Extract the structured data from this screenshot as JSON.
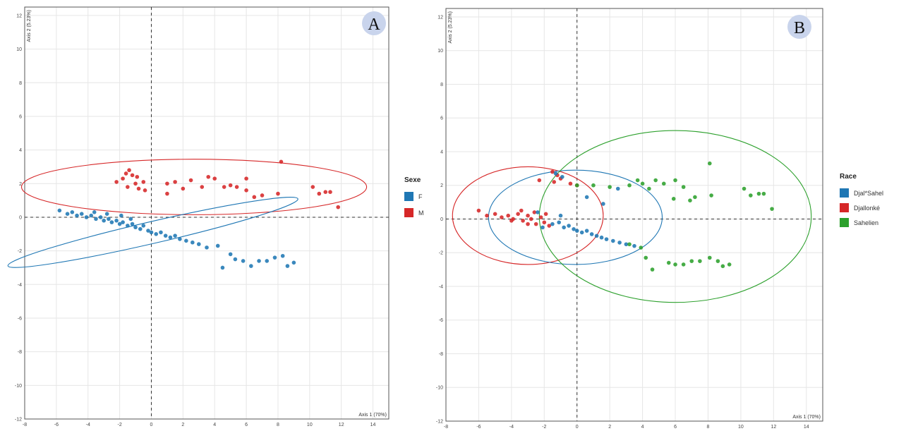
{
  "chart_data": [
    {
      "panel": "A",
      "type": "scatter",
      "xlabel": "Axis 1 (70%)",
      "ylabel": "Axis 2 (5.23%)",
      "xlim": [
        -8,
        15
      ],
      "ylim": [
        -12,
        12.5
      ],
      "xticks": [
        -8,
        -6,
        -4,
        -2,
        0,
        2,
        4,
        6,
        8,
        10,
        12,
        14
      ],
      "yticks": [
        -12,
        -10,
        -8,
        -6,
        -4,
        -2,
        0,
        2,
        4,
        6,
        8,
        10,
        12
      ],
      "grid": true,
      "legend": {
        "title": "Sexe",
        "position": "right",
        "entries": [
          {
            "label": "F",
            "color": "#1f77b4"
          },
          {
            "label": "M",
            "color": "#d62728"
          }
        ]
      },
      "ellipses": [
        {
          "series": "M",
          "cx": 2.7,
          "cy": 1.8,
          "rx": 10.9,
          "ry": 1.65,
          "angle": 0,
          "color": "#d62728"
        },
        {
          "series": "F",
          "cx": 0.1,
          "cy": -0.9,
          "rx": 9.4,
          "ry": 0.65,
          "angle": -13,
          "color": "#1f77b4"
        }
      ],
      "series": [
        {
          "name": "M",
          "color": "#d62728",
          "points": [
            [
              -1.4,
              2.8
            ],
            [
              -1.6,
              2.6
            ],
            [
              -1.2,
              2.5
            ],
            [
              -0.9,
              2.4
            ],
            [
              -1.8,
              2.3
            ],
            [
              -2.2,
              2.1
            ],
            [
              -1.0,
              2.0
            ],
            [
              -0.5,
              2.1
            ],
            [
              -1.5,
              1.8
            ],
            [
              -0.8,
              1.7
            ],
            [
              1.0,
              2.0
            ],
            [
              1.5,
              2.1
            ],
            [
              1.0,
              1.4
            ],
            [
              2.0,
              1.7
            ],
            [
              2.5,
              2.2
            ],
            [
              3.2,
              1.8
            ],
            [
              3.6,
              2.4
            ],
            [
              4.0,
              2.3
            ],
            [
              4.6,
              1.8
            ],
            [
              5.0,
              1.9
            ],
            [
              5.4,
              1.8
            ],
            [
              6.0,
              2.3
            ],
            [
              6.5,
              1.2
            ],
            [
              7.0,
              1.3
            ],
            [
              8.0,
              1.4
            ],
            [
              8.2,
              3.3
            ],
            [
              10.2,
              1.8
            ],
            [
              10.6,
              1.4
            ],
            [
              11.0,
              1.5
            ],
            [
              11.3,
              1.5
            ],
            [
              11.8,
              0.6
            ],
            [
              6.0,
              1.6
            ],
            [
              -0.4,
              1.6
            ]
          ]
        },
        {
          "name": "F",
          "color": "#1f77b4",
          "points": [
            [
              -5.8,
              0.4
            ],
            [
              -5.3,
              0.2
            ],
            [
              -5.0,
              0.3
            ],
            [
              -4.7,
              0.1
            ],
            [
              -4.4,
              0.2
            ],
            [
              -4.1,
              0.0
            ],
            [
              -3.8,
              0.1
            ],
            [
              -3.5,
              -0.1
            ],
            [
              -3.2,
              0.0
            ],
            [
              -3.0,
              -0.2
            ],
            [
              -2.7,
              -0.1
            ],
            [
              -2.5,
              -0.3
            ],
            [
              -2.2,
              -0.2
            ],
            [
              -2.0,
              -0.4
            ],
            [
              -1.8,
              -0.3
            ],
            [
              -1.5,
              -0.5
            ],
            [
              -1.2,
              -0.4
            ],
            [
              -1.0,
              -0.6
            ],
            [
              -0.7,
              -0.7
            ],
            [
              -0.5,
              -0.5
            ],
            [
              -0.2,
              -0.8
            ],
            [
              0.0,
              -0.9
            ],
            [
              0.3,
              -1.0
            ],
            [
              0.6,
              -0.9
            ],
            [
              0.9,
              -1.1
            ],
            [
              1.2,
              -1.2
            ],
            [
              1.5,
              -1.1
            ],
            [
              1.8,
              -1.3
            ],
            [
              2.2,
              -1.4
            ],
            [
              2.6,
              -1.5
            ],
            [
              3.0,
              -1.6
            ],
            [
              3.5,
              -1.8
            ],
            [
              4.2,
              -1.7
            ],
            [
              5.0,
              -2.2
            ],
            [
              4.5,
              -3.0
            ],
            [
              5.3,
              -2.5
            ],
            [
              5.8,
              -2.6
            ],
            [
              6.3,
              -2.9
            ],
            [
              6.8,
              -2.6
            ],
            [
              7.3,
              -2.6
            ],
            [
              7.8,
              -2.4
            ],
            [
              8.3,
              -2.3
            ],
            [
              8.6,
              -2.9
            ],
            [
              9.0,
              -2.7
            ],
            [
              -3.6,
              0.3
            ],
            [
              -2.8,
              0.2
            ],
            [
              -1.9,
              0.1
            ],
            [
              -1.3,
              -0.1
            ]
          ]
        }
      ]
    },
    {
      "panel": "B",
      "type": "scatter",
      "xlabel": "Axis 1 (70%)",
      "ylabel": "Axis 2 (5.23%)",
      "xlim": [
        -8,
        15
      ],
      "ylim": [
        -12,
        12.5
      ],
      "xticks": [
        -8,
        -6,
        -4,
        -2,
        0,
        2,
        4,
        6,
        8,
        10,
        12,
        14
      ],
      "yticks": [
        -12,
        -10,
        -8,
        -6,
        -4,
        -2,
        0,
        2,
        4,
        6,
        8,
        10,
        12
      ],
      "grid": true,
      "legend": {
        "title": "Race",
        "position": "right",
        "entries": [
          {
            "label": "Djal*Sahel",
            "color": "#1f77b4"
          },
          {
            "label": "Djallonké",
            "color": "#d62728"
          },
          {
            "label": "Sahelien",
            "color": "#2ca02c"
          }
        ]
      },
      "ellipses": [
        {
          "series": "Djallonké",
          "cx": -3.0,
          "cy": 0.2,
          "rx": 4.6,
          "ry": 2.9,
          "angle": 0,
          "color": "#d62728"
        },
        {
          "series": "Djal*Sahel",
          "cx": -0.1,
          "cy": 0.1,
          "rx": 5.3,
          "ry": 2.8,
          "angle": 0,
          "color": "#1f77b4"
        },
        {
          "series": "Sahelien",
          "cx": 6.0,
          "cy": 0.15,
          "rx": 8.3,
          "ry": 5.1,
          "angle": 0,
          "color": "#2ca02c"
        }
      ],
      "series": [
        {
          "name": "Djallonké",
          "color": "#d62728",
          "points": [
            [
              -6.0,
              0.5
            ],
            [
              -5.5,
              0.2
            ],
            [
              -5.0,
              0.3
            ],
            [
              -4.6,
              0.1
            ],
            [
              -4.2,
              0.2
            ],
            [
              -3.9,
              0.0
            ],
            [
              -3.6,
              0.3
            ],
            [
              -3.3,
              -0.1
            ],
            [
              -3.0,
              0.2
            ],
            [
              -2.8,
              0.0
            ],
            [
              -2.5,
              -0.3
            ],
            [
              -2.2,
              0.1
            ],
            [
              -2.0,
              -0.2
            ],
            [
              -3.4,
              0.5
            ],
            [
              -2.6,
              0.4
            ],
            [
              -1.9,
              0.3
            ],
            [
              -1.5,
              2.8
            ],
            [
              -1.2,
              2.6
            ],
            [
              -1.0,
              2.4
            ],
            [
              -1.4,
              2.2
            ],
            [
              -2.3,
              2.3
            ],
            [
              -0.4,
              2.1
            ],
            [
              0.0,
              2.0
            ],
            [
              -1.7,
              -0.4
            ],
            [
              -4.0,
              -0.1
            ],
            [
              -3.0,
              -0.3
            ]
          ]
        },
        {
          "name": "Djal*Sahel",
          "color": "#1f77b4",
          "points": [
            [
              -1.5,
              -0.3
            ],
            [
              -1.1,
              -0.2
            ],
            [
              -0.8,
              -0.5
            ],
            [
              -0.5,
              -0.4
            ],
            [
              -0.2,
              -0.6
            ],
            [
              0.0,
              -0.7
            ],
            [
              0.3,
              -0.8
            ],
            [
              0.6,
              -0.7
            ],
            [
              0.9,
              -0.9
            ],
            [
              1.2,
              -1.0
            ],
            [
              1.5,
              -1.1
            ],
            [
              1.8,
              -1.2
            ],
            [
              2.2,
              -1.3
            ],
            [
              2.6,
              -1.4
            ],
            [
              3.0,
              -1.5
            ],
            [
              3.5,
              -1.6
            ],
            [
              -1.3,
              2.7
            ],
            [
              -0.9,
              2.5
            ],
            [
              0.6,
              1.3
            ],
            [
              2.5,
              1.8
            ],
            [
              1.6,
              0.9
            ],
            [
              -2.4,
              0.4
            ],
            [
              -2.1,
              -0.5
            ],
            [
              -1.0,
              0.2
            ]
          ]
        },
        {
          "name": "Sahelien",
          "color": "#2ca02c",
          "points": [
            [
              0.0,
              2.0
            ],
            [
              1.0,
              2.0
            ],
            [
              2.0,
              1.9
            ],
            [
              3.2,
              2.0
            ],
            [
              3.7,
              2.3
            ],
            [
              4.0,
              2.1
            ],
            [
              4.4,
              1.8
            ],
            [
              4.8,
              2.3
            ],
            [
              5.3,
              2.1
            ],
            [
              6.0,
              2.3
            ],
            [
              6.5,
              1.9
            ],
            [
              5.9,
              1.2
            ],
            [
              6.9,
              1.1
            ],
            [
              7.2,
              1.3
            ],
            [
              8.1,
              3.3
            ],
            [
              8.2,
              1.4
            ],
            [
              10.2,
              1.8
            ],
            [
              10.6,
              1.4
            ],
            [
              11.1,
              1.5
            ],
            [
              11.4,
              1.5
            ],
            [
              11.9,
              0.6
            ],
            [
              4.2,
              -2.3
            ],
            [
              4.6,
              -3.0
            ],
            [
              5.6,
              -2.6
            ],
            [
              6.0,
              -2.7
            ],
            [
              6.5,
              -2.7
            ],
            [
              7.0,
              -2.5
            ],
            [
              7.5,
              -2.5
            ],
            [
              8.1,
              -2.3
            ],
            [
              8.6,
              -2.5
            ],
            [
              8.9,
              -2.8
            ],
            [
              9.3,
              -2.7
            ],
            [
              3.9,
              -1.7
            ],
            [
              3.2,
              -1.5
            ]
          ]
        }
      ]
    }
  ]
}
